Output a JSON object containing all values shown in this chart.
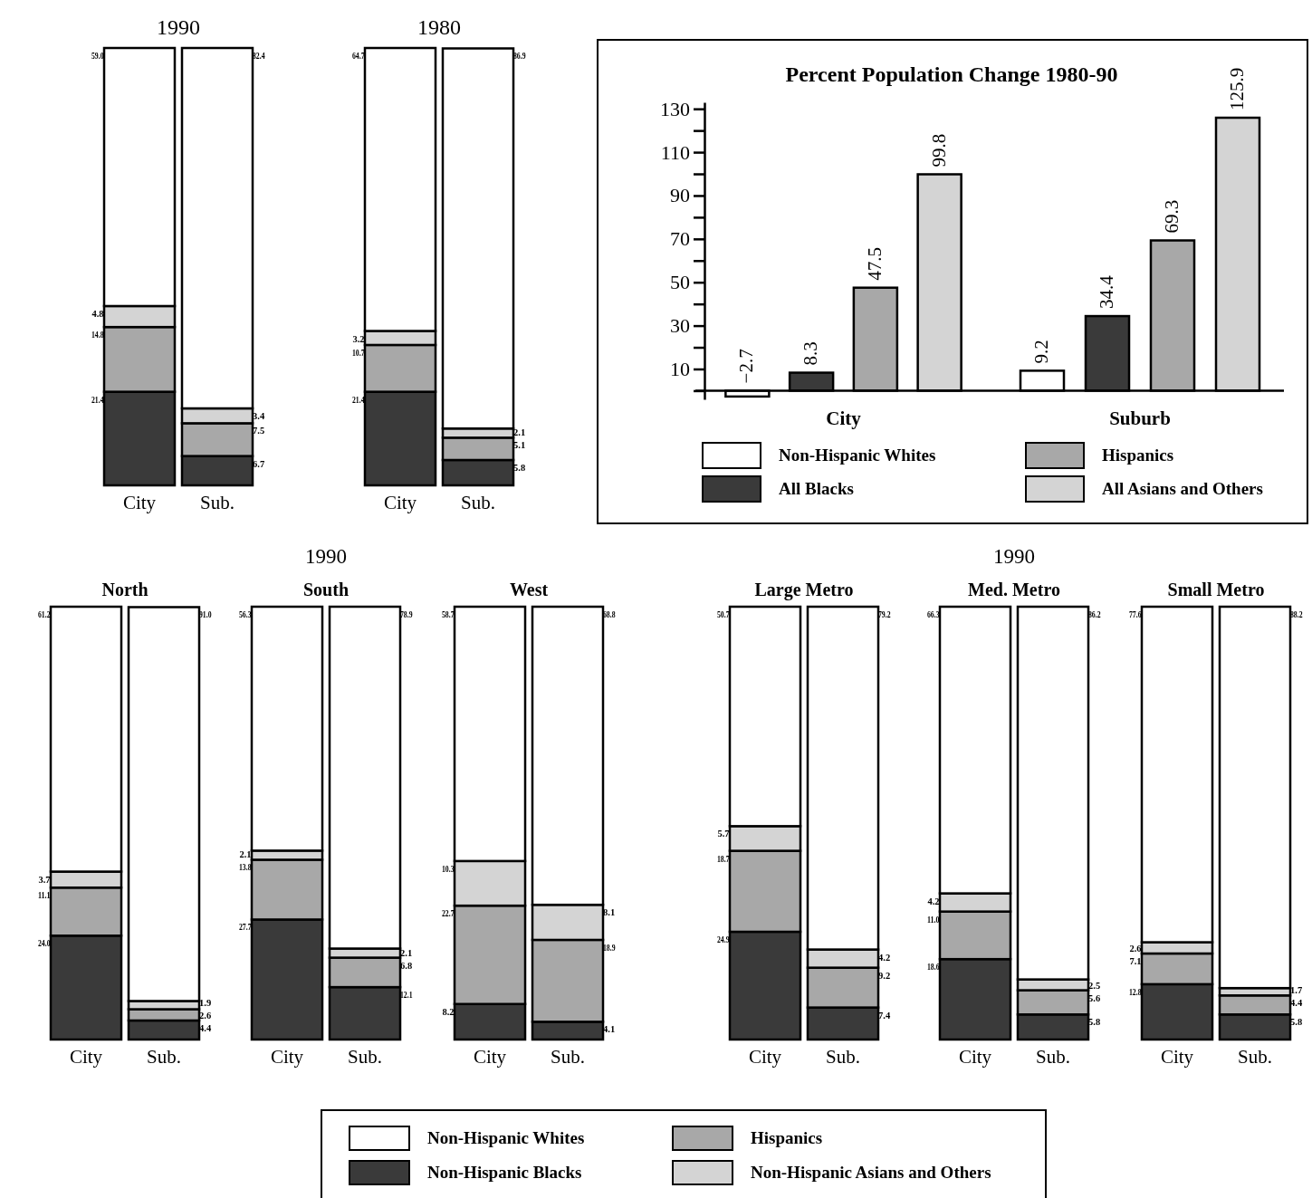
{
  "chart_data": [
    {
      "type": "bar",
      "stacked": true,
      "title": "1990",
      "categories": [
        "City",
        "Sub."
      ],
      "series": [
        {
          "color": "#3a3a3a",
          "values": [
            21.4,
            6.7
          ],
          "value_labels": [
            "21.4",
            "6.7"
          ]
        },
        {
          "color": "#a8a8a8",
          "values": [
            14.8,
            7.5
          ],
          "value_labels": [
            "14.8",
            "7.5"
          ]
        },
        {
          "color": "#d4d4d4",
          "values": [
            4.8,
            3.4
          ],
          "value_labels": [
            "4.8",
            "3.4"
          ]
        },
        {
          "color": "#ffffff",
          "values": [
            59.0,
            82.4
          ],
          "value_labels": [
            "59.0",
            "82.4"
          ]
        }
      ]
    },
    {
      "type": "bar",
      "stacked": true,
      "title": "1980",
      "categories": [
        "City",
        "Sub."
      ],
      "series": [
        {
          "color": "#3a3a3a",
          "values": [
            21.4,
            5.8
          ],
          "value_labels": [
            "21.4",
            "5.8"
          ]
        },
        {
          "color": "#a8a8a8",
          "values": [
            10.7,
            5.1
          ],
          "value_labels": [
            "10.7",
            "5.1"
          ]
        },
        {
          "color": "#d4d4d4",
          "values": [
            3.2,
            2.1
          ],
          "value_labels": [
            "3.2",
            "2.1"
          ]
        },
        {
          "color": "#ffffff",
          "values": [
            64.7,
            86.9
          ],
          "value_labels": [
            "64.7",
            "86.9"
          ]
        }
      ]
    },
    {
      "type": "bar",
      "title": "Percent Population Change 1980-90",
      "categories": [
        "City",
        "Suburb"
      ],
      "data_labels": true,
      "legend": "bottom",
      "ylim": [
        -4,
        133
      ],
      "yticks": [
        {
          "value": 0,
          "label": null
        },
        10,
        {
          "value": 20,
          "label": null
        },
        30,
        {
          "value": 40,
          "label": null
        },
        50,
        {
          "value": 60,
          "label": null
        },
        70,
        {
          "value": 80,
          "label": null
        },
        90,
        {
          "value": 100,
          "label": null
        },
        110,
        {
          "value": 120,
          "label": null
        },
        130
      ],
      "series": [
        {
          "name": "Non-Hispanic Whites",
          "color": "#ffffff",
          "values": [
            -2.7,
            9.2
          ]
        },
        {
          "name": "All Blacks",
          "color": "#3a3a3a",
          "values": [
            8.3,
            34.4
          ]
        },
        {
          "name": "Hispanics",
          "color": "#a8a8a8",
          "values": [
            47.5,
            69.3
          ]
        },
        {
          "name": "All Asians and Others",
          "color": "#d4d4d4",
          "values": [
            99.8,
            125.9
          ]
        }
      ]
    },
    {
      "type": "bar",
      "stacked": true,
      "title": "North",
      "categories": [
        "City",
        "Sub."
      ],
      "series": [
        {
          "color": "#3a3a3a",
          "values": [
            24.0,
            4.4
          ],
          "value_labels": [
            "24.0",
            "4.4"
          ]
        },
        {
          "color": "#a8a8a8",
          "values": [
            11.1,
            2.6
          ],
          "value_labels": [
            "11.1",
            "2.6"
          ]
        },
        {
          "color": "#d4d4d4",
          "values": [
            3.7,
            1.9
          ],
          "value_labels": [
            "3.7",
            "1.9"
          ]
        },
        {
          "color": "#ffffff",
          "values": [
            61.2,
            91.0
          ],
          "value_labels": [
            "61.2",
            "91.0"
          ]
        }
      ]
    },
    {
      "type": "bar",
      "stacked": true,
      "title": "South",
      "annotations": [
        "1990"
      ],
      "categories": [
        "City",
        "Sub."
      ],
      "series": [
        {
          "color": "#3a3a3a",
          "values": [
            27.7,
            12.1
          ],
          "value_labels": [
            "27.7",
            "12.1"
          ]
        },
        {
          "color": "#a8a8a8",
          "values": [
            13.8,
            6.8
          ],
          "value_labels": [
            "13.8",
            "6.8"
          ]
        },
        {
          "color": "#d4d4d4",
          "values": [
            2.1,
            2.1
          ],
          "value_labels": [
            "2.1",
            "2.1"
          ]
        },
        {
          "color": "#ffffff",
          "values": [
            56.3,
            78.9
          ],
          "value_labels": [
            "56.3",
            "78.9"
          ]
        }
      ]
    },
    {
      "type": "bar",
      "stacked": true,
      "title": "West",
      "categories": [
        "City",
        "Sub."
      ],
      "series": [
        {
          "color": "#3a3a3a",
          "values": [
            8.2,
            4.1
          ],
          "value_labels": [
            "8.2",
            "4.1"
          ]
        },
        {
          "color": "#a8a8a8",
          "values": [
            22.7,
            18.9
          ],
          "value_labels": [
            "22.7",
            "18.9"
          ]
        },
        {
          "color": "#d4d4d4",
          "values": [
            10.3,
            8.1
          ],
          "value_labels": [
            "10.3",
            "8.1"
          ]
        },
        {
          "color": "#ffffff",
          "values": [
            58.7,
            68.8
          ],
          "value_labels": [
            "58.7",
            "68.8"
          ]
        }
      ]
    },
    {
      "type": "bar",
      "stacked": true,
      "title": "Large Metro",
      "categories": [
        "City",
        "Sub."
      ],
      "series": [
        {
          "color": "#3a3a3a",
          "values": [
            24.9,
            7.4
          ],
          "value_labels": [
            "24.9",
            "7.4"
          ]
        },
        {
          "color": "#a8a8a8",
          "values": [
            18.7,
            9.2
          ],
          "value_labels": [
            "18.7",
            "9.2"
          ]
        },
        {
          "color": "#d4d4d4",
          "values": [
            5.7,
            4.2
          ],
          "value_labels": [
            "5.7",
            "4.2"
          ]
        },
        {
          "color": "#ffffff",
          "values": [
            50.7,
            79.2
          ],
          "value_labels": [
            "50.7",
            "79.2"
          ]
        }
      ]
    },
    {
      "type": "bar",
      "stacked": true,
      "title": "Med. Metro",
      "annotations": [
        "1990"
      ],
      "categories": [
        "City",
        "Sub."
      ],
      "legend": "bottom",
      "series": [
        {
          "name": "Non-Hispanic Blacks",
          "color": "#3a3a3a",
          "values": [
            18.6,
            5.8
          ],
          "value_labels": [
            "18.6",
            "5.8"
          ]
        },
        {
          "name": "Hispanics",
          "color": "#a8a8a8",
          "values": [
            11.0,
            5.6
          ],
          "value_labels": [
            "11.0",
            "5.6"
          ]
        },
        {
          "name": "Non-Hispanic Asians and Others",
          "color": "#d4d4d4",
          "values": [
            4.2,
            2.5
          ],
          "value_labels": [
            "4.2",
            "2.5"
          ]
        },
        {
          "name": "Non-Hispanic Whites",
          "color": "#ffffff",
          "values": [
            66.3,
            86.2
          ],
          "value_labels": [
            "66.3",
            "86.2"
          ]
        }
      ]
    },
    {
      "type": "bar",
      "stacked": true,
      "title": "Small Metro",
      "categories": [
        "City",
        "Sub."
      ],
      "series": [
        {
          "color": "#3a3a3a",
          "values": [
            12.8,
            5.8
          ],
          "value_labels": [
            "12.8",
            "5.8"
          ]
        },
        {
          "color": "#a8a8a8",
          "values": [
            7.1,
            4.4
          ],
          "value_labels": [
            "7.1",
            "4.4"
          ]
        },
        {
          "color": "#d4d4d4",
          "values": [
            2.6,
            1.7
          ],
          "value_labels": [
            "2.6",
            "1.7"
          ]
        },
        {
          "color": "#ffffff",
          "values": [
            77.6,
            88.2
          ],
          "value_labels": [
            "77.6",
            "88.2"
          ]
        }
      ]
    }
  ]
}
